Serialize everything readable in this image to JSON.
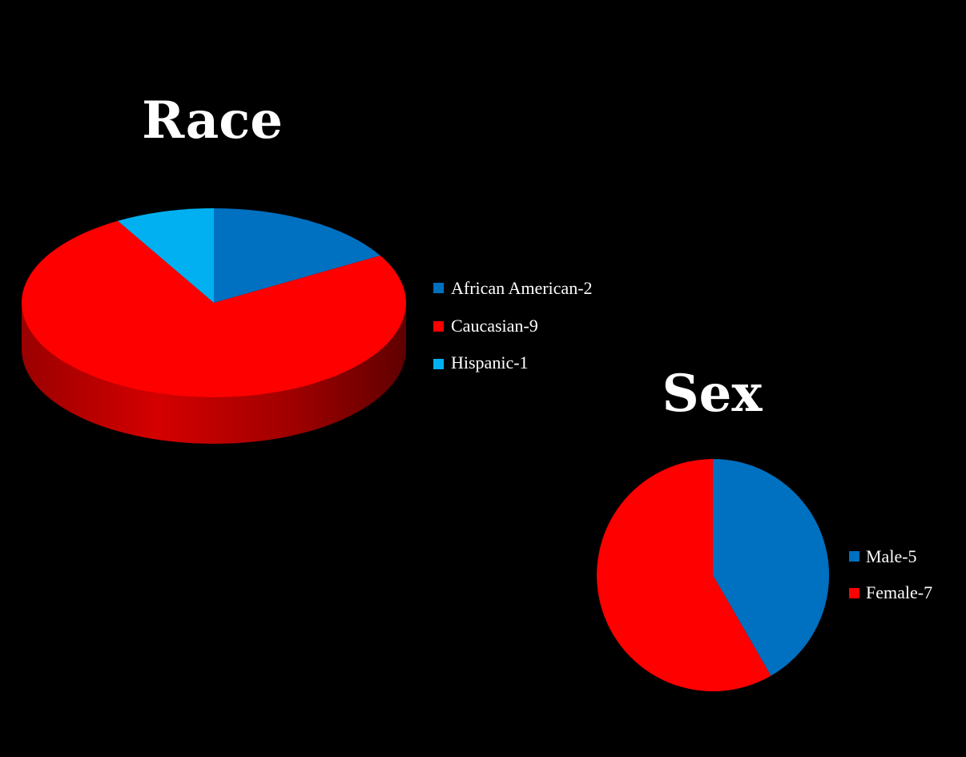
{
  "chart_data": [
    {
      "type": "pie",
      "title": "Race",
      "style": "3d",
      "categories": [
        "African American-2",
        "Caucasian-9",
        "Hispanic-1"
      ],
      "values": [
        2,
        9,
        1
      ],
      "colors": [
        "#0070c0",
        "#ff0000",
        "#00b0f0"
      ],
      "side_colors": [
        "#004a80",
        "#9a0000",
        "#0078a8"
      ],
      "legend": "right"
    },
    {
      "type": "pie",
      "title": "Sex",
      "style": "2d",
      "categories": [
        "Male-5",
        "Female-7"
      ],
      "values": [
        5,
        7
      ],
      "colors": [
        "#0070c0",
        "#ff0000"
      ],
      "legend": "right"
    }
  ],
  "background": "#000000"
}
